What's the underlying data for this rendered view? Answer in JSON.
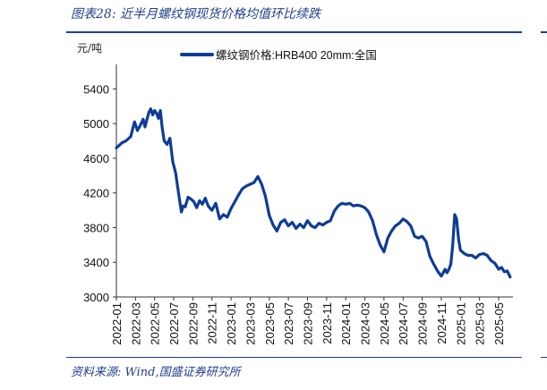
{
  "header": {
    "title": "图表28:  近半月螺纹钢现货价格均值环比续跌"
  },
  "footer": {
    "source": "资料来源:  Wind,国盛证券研究所"
  },
  "colors": {
    "accent": "#1f3e8c",
    "series": "#0e3c96"
  },
  "chart_data": {
    "type": "line",
    "title": "近半月螺纹钢现货价格均值环比续跌",
    "ylabel": "元/吨",
    "xlabel": "",
    "ylim": [
      3000,
      5600
    ],
    "yticks": [
      3000,
      3400,
      3800,
      4200,
      4600,
      5000,
      5400
    ],
    "xlim": [
      0,
      41.5
    ],
    "xtick_labels": [
      "2022-01",
      "2022-03",
      "2022-05",
      "2022-07",
      "2022-09",
      "2022-11",
      "2023-01",
      "2023-03",
      "2023-05",
      "2023-07",
      "2023-09",
      "2023-11",
      "2024-01",
      "2024-03",
      "2024-05",
      "2024-07",
      "2024-09",
      "2024-11",
      "2025-01",
      "2025-03",
      "2025-05"
    ],
    "legend": "top-center",
    "series": [
      {
        "name": "螺纹钢价格:HRB400 20mm:全国",
        "x": [
          0,
          0.3,
          0.6,
          1.0,
          1.5,
          1.9,
          2.2,
          2.5,
          2.8,
          3.0,
          3.2,
          3.4,
          3.6,
          3.8,
          4.0,
          4.2,
          4.4,
          4.6,
          4.8,
          5.0,
          5.3,
          5.6,
          5.9,
          6.2,
          6.5,
          6.8,
          7.0,
          7.2,
          7.5,
          7.8,
          8.1,
          8.4,
          8.7,
          9.0,
          9.3,
          9.6,
          10.0,
          10.4,
          10.8,
          11.2,
          11.6,
          12.0,
          12.4,
          12.8,
          13.2,
          13.6,
          14.0,
          14.4,
          14.8,
          15.2,
          15.6,
          16.0,
          16.4,
          16.8,
          17.2,
          17.6,
          18.0,
          18.4,
          18.8,
          19.2,
          19.6,
          20.0,
          20.4,
          20.8,
          21.2,
          21.6,
          22.0,
          22.4,
          22.8,
          23.2,
          23.6,
          24.0,
          24.4,
          24.8,
          25.2,
          25.6,
          26.0,
          26.4,
          26.8,
          27.2,
          27.6,
          28.0,
          28.4,
          28.8,
          29.2,
          29.6,
          30.0,
          30.4,
          30.8,
          31.2,
          31.6,
          32.0,
          32.4,
          32.8,
          33.2,
          33.6,
          34.0,
          34.2,
          34.4,
          34.6,
          34.8,
          35.0,
          35.2,
          35.4,
          35.6,
          35.8,
          36.0,
          36.4,
          36.8,
          37.2,
          37.6,
          38.0,
          38.4,
          38.8,
          39.2,
          39.6,
          40.0,
          40.3,
          40.6,
          40.9,
          41.2
        ],
        "values": [
          4720,
          4750,
          4780,
          4800,
          4850,
          5020,
          4920,
          4980,
          5050,
          4960,
          5050,
          5130,
          5170,
          5100,
          5150,
          5120,
          5060,
          5150,
          4950,
          4800,
          4760,
          4830,
          4560,
          4430,
          4200,
          3980,
          4050,
          4040,
          4150,
          4130,
          4100,
          4030,
          4110,
          4070,
          4140,
          4050,
          4000,
          4080,
          3900,
          3950,
          3920,
          4020,
          4100,
          4180,
          4250,
          4280,
          4300,
          4320,
          4390,
          4300,
          4160,
          3940,
          3830,
          3760,
          3860,
          3890,
          3820,
          3860,
          3790,
          3840,
          3800,
          3880,
          3820,
          3800,
          3850,
          3830,
          3860,
          3880,
          3990,
          4050,
          4080,
          4070,
          4080,
          4050,
          4060,
          4050,
          4030,
          3980,
          3880,
          3720,
          3600,
          3520,
          3680,
          3760,
          3820,
          3850,
          3900,
          3870,
          3820,
          3700,
          3680,
          3700,
          3640,
          3470,
          3380,
          3300,
          3240,
          3280,
          3320,
          3280,
          3320,
          3380,
          3600,
          3950,
          3900,
          3670,
          3540,
          3500,
          3480,
          3480,
          3450,
          3490,
          3500,
          3480,
          3420,
          3390,
          3320,
          3340,
          3290,
          3300,
          3230
        ]
      }
    ]
  }
}
